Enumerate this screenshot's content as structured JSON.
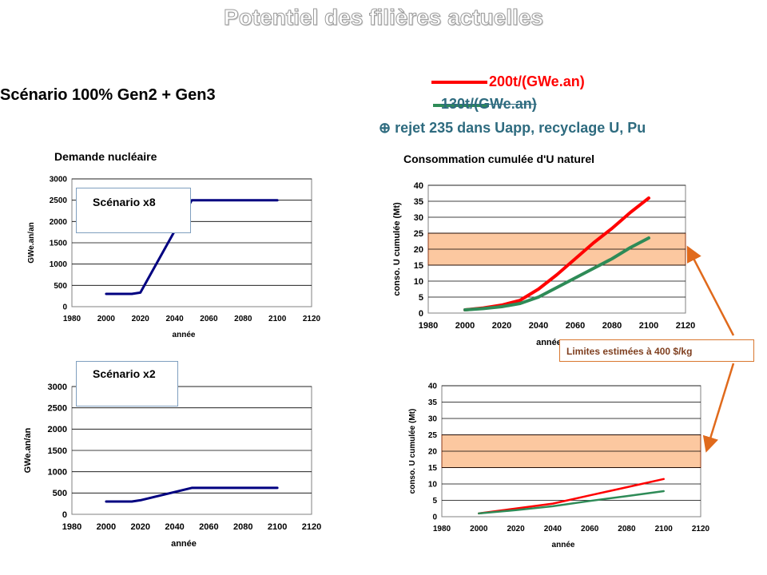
{
  "slide": {
    "title": "Potentiel des filières actuelles",
    "scenario_heading": "Scénario 100% Gen2 + Gen3"
  },
  "legend": {
    "entries": [
      {
        "label": "200t/(GWe.an)",
        "color": "#ff0000"
      },
      {
        "label": "130t/(GWe.an)",
        "color": "#2e8b57"
      }
    ],
    "note": "⊕ rejet 235 dans Uapp, recyclage U, Pu"
  },
  "annotations": {
    "scenario_x8": "Scénario x8",
    "scenario_x2": "Scénario x2",
    "limits": "Limites estimées à 400 $/kg",
    "band_color": "#fcc8a0",
    "arrow_color": "#e06a1c"
  },
  "chart_data": [
    {
      "type": "line",
      "title": "Demande nucléaire",
      "xlabel": "année",
      "ylabel": "GWe.an/an",
      "xlim": [
        1980,
        2120
      ],
      "ylim": [
        0,
        3000
      ],
      "xticks": [
        1980,
        2000,
        2020,
        2040,
        2060,
        2080,
        2100,
        2120
      ],
      "yticks": [
        0,
        500,
        1000,
        1500,
        2000,
        2500,
        3000
      ],
      "grid": true,
      "series": [
        {
          "color": "#000080",
          "x": [
            2000,
            2015,
            2020,
            2050,
            2100
          ],
          "y": [
            300,
            300,
            330,
            2500,
            2500
          ]
        }
      ]
    },
    {
      "type": "line",
      "title": "Consommation cumulée d'U naturel",
      "xlabel": "année",
      "ylabel": "conso. U cumulée (Mt)",
      "xlim": [
        1980,
        2120
      ],
      "ylim": [
        0,
        40
      ],
      "xticks": [
        1980,
        2000,
        2020,
        2040,
        2060,
        2080,
        2100,
        2120
      ],
      "yticks": [
        0,
        5,
        10,
        15,
        20,
        25,
        30,
        35,
        40
      ],
      "grid": true,
      "band": [
        15,
        25
      ],
      "series": [
        {
          "name": "200t/(GWe.an)",
          "color": "#ff0000",
          "x": [
            2000,
            2010,
            2020,
            2030,
            2040,
            2050,
            2060,
            2070,
            2080,
            2090,
            2100
          ],
          "y": [
            1,
            1.6,
            2.5,
            4,
            7.5,
            12,
            17,
            22,
            26.5,
            31.5,
            36
          ]
        },
        {
          "name": "130t/(GWe.an)",
          "color": "#2e8b57",
          "x": [
            2000,
            2010,
            2020,
            2030,
            2040,
            2050,
            2060,
            2070,
            2080,
            2090,
            2100
          ],
          "y": [
            1,
            1.4,
            2,
            3,
            5,
            8,
            11,
            14,
            17,
            20.5,
            23.5
          ]
        }
      ]
    },
    {
      "type": "line",
      "xlabel": "année",
      "ylabel": "GWe.an/an",
      "xlim": [
        1980,
        2120
      ],
      "ylim": [
        0,
        3000
      ],
      "xticks": [
        1980,
        2000,
        2020,
        2040,
        2060,
        2080,
        2100,
        2120
      ],
      "yticks": [
        0,
        500,
        1000,
        1500,
        2000,
        2500,
        3000
      ],
      "grid": true,
      "series": [
        {
          "color": "#000080",
          "x": [
            2000,
            2015,
            2020,
            2050,
            2100
          ],
          "y": [
            300,
            300,
            330,
            620,
            620
          ]
        }
      ]
    },
    {
      "type": "line",
      "xlabel": "année",
      "ylabel": "conso. U cumulée (Mt)",
      "xlim": [
        1980,
        2120
      ],
      "ylim": [
        0,
        40
      ],
      "xticks": [
        1980,
        2000,
        2020,
        2040,
        2060,
        2080,
        2100,
        2120
      ],
      "yticks": [
        0,
        5,
        10,
        15,
        20,
        25,
        30,
        35,
        40
      ],
      "grid": true,
      "band": [
        15,
        25
      ],
      "series": [
        {
          "name": "200t/(GWe.an)",
          "color": "#ff0000",
          "x": [
            2000,
            2020,
            2040,
            2060,
            2080,
            2100
          ],
          "y": [
            1,
            2.5,
            4,
            6.5,
            9,
            11.5
          ]
        },
        {
          "name": "130t/(GWe.an)",
          "color": "#2e8b57",
          "x": [
            2000,
            2020,
            2040,
            2060,
            2080,
            2100
          ],
          "y": [
            1,
            2,
            3.2,
            4.8,
            6.3,
            7.8
          ]
        }
      ]
    }
  ]
}
